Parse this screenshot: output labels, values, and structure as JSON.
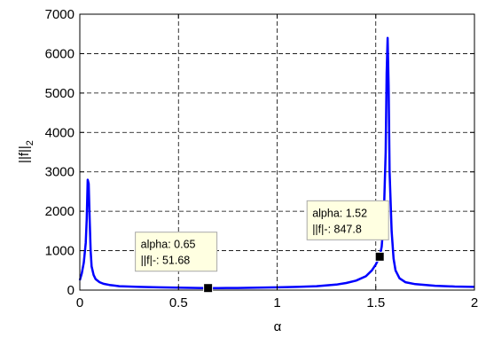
{
  "chart_data": {
    "type": "line",
    "xlabel": "α",
    "ylabel": "||f||",
    "ylabel_subscript": "2",
    "xlim": [
      0,
      2
    ],
    "ylim": [
      0,
      7000
    ],
    "x_ticks": [
      0,
      0.5,
      1,
      1.5,
      2
    ],
    "x_tick_labels": [
      "0",
      "0.5",
      "1",
      "1.5",
      "2"
    ],
    "y_ticks": [
      0,
      1000,
      2000,
      3000,
      4000,
      5000,
      6000,
      7000
    ],
    "y_tick_labels": [
      "0",
      "1000",
      "2000",
      "3000",
      "4000",
      "5000",
      "6000",
      "7000"
    ],
    "grid": true,
    "grid_style": "dashed",
    "series": [
      {
        "color": "#0000ff",
        "x": [
          0.0,
          0.01,
          0.02,
          0.03,
          0.035,
          0.04,
          0.045,
          0.05,
          0.055,
          0.06,
          0.07,
          0.08,
          0.1,
          0.12,
          0.15,
          0.2,
          0.3,
          0.4,
          0.5,
          0.6,
          0.65,
          0.7,
          0.8,
          0.9,
          1.0,
          1.1,
          1.2,
          1.3,
          1.35,
          1.4,
          1.45,
          1.48,
          1.5,
          1.52,
          1.53,
          1.54,
          1.55,
          1.555,
          1.56,
          1.565,
          1.57,
          1.58,
          1.59,
          1.6,
          1.62,
          1.65,
          1.7,
          1.8,
          1.9,
          2.0
        ],
        "y": [
          250,
          420,
          700,
          1200,
          1800,
          2800,
          2700,
          1800,
          1000,
          600,
          380,
          280,
          200,
          160,
          130,
          100,
          80,
          70,
          60,
          55,
          52,
          52,
          55,
          60,
          70,
          80,
          100,
          140,
          180,
          240,
          350,
          500,
          650,
          848,
          1100,
          1800,
          3500,
          5500,
          6400,
          5200,
          3000,
          1500,
          800,
          500,
          300,
          200,
          150,
          110,
          90,
          80
        ]
      }
    ],
    "annotations": [
      {
        "x": 0.65,
        "y": 51.68,
        "line1": "alpha: 0.65",
        "line2": "||f|-: 51.68"
      },
      {
        "x": 1.52,
        "y": 847.8,
        "line1": "alpha: 1.52",
        "line2": "||f|-: 847.8"
      }
    ]
  }
}
